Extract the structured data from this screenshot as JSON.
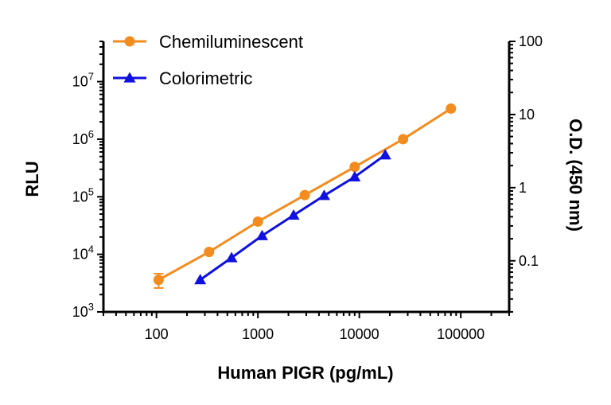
{
  "chart_data": {
    "type": "line",
    "xlabel": "Human PIGR (pg/mL)",
    "ylabel": "RLU",
    "y2label": "O.D. (450 nm)",
    "x_scale": "log",
    "y_scale": "log",
    "y2_scale": "log",
    "xlim": [
      30,
      300000
    ],
    "ylim": [
      1000,
      50000000
    ],
    "y2lim": [
      0.02,
      100
    ],
    "x_ticks": [
      {
        "value": 100,
        "label": "100"
      },
      {
        "value": 1000,
        "label": "1000"
      },
      {
        "value": 10000,
        "label": "10000"
      },
      {
        "value": 100000,
        "label": "100000"
      }
    ],
    "y_ticks": [
      {
        "value": 1000,
        "base": "10",
        "exp": "3"
      },
      {
        "value": 10000,
        "base": "10",
        "exp": "4"
      },
      {
        "value": 100000,
        "base": "10",
        "exp": "5"
      },
      {
        "value": 1000000,
        "base": "10",
        "exp": "6"
      },
      {
        "value": 10000000,
        "base": "10",
        "exp": "7"
      }
    ],
    "y2_ticks": [
      {
        "value": 0.1,
        "label": "0.1"
      },
      {
        "value": 1,
        "label": "1"
      },
      {
        "value": 10,
        "label": "10"
      },
      {
        "value": 100,
        "label": "100"
      }
    ],
    "grid": false,
    "legend_position": "top-left",
    "series": [
      {
        "name": "Chemiluminescent",
        "axis": "left",
        "color": "#F28C1E",
        "marker": "circle",
        "x": [
          105,
          330,
          1000,
          2900,
          9000,
          27000,
          80000
        ],
        "y": [
          3600,
          11000,
          37000,
          107000,
          330000,
          1000000,
          3400000
        ],
        "error": [
          1000,
          0,
          0,
          0,
          0,
          0,
          0
        ]
      },
      {
        "name": "Colorimetric",
        "axis": "right",
        "color": "#1010E0",
        "marker": "triangle",
        "x": [
          270,
          550,
          1100,
          2250,
          4500,
          9000,
          18000
        ],
        "y": [
          0.055,
          0.11,
          0.22,
          0.42,
          0.78,
          1.4,
          2.8
        ]
      }
    ]
  }
}
